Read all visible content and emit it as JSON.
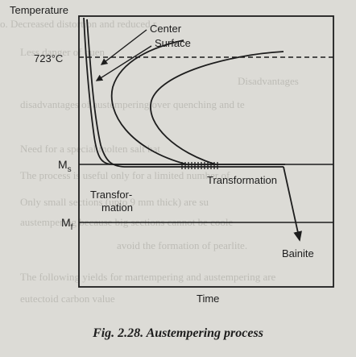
{
  "figure": {
    "y_axis_label": "Temperature",
    "x_axis_label": "Time",
    "temp_label": "723°C",
    "ms_label": "M",
    "ms_sub": "s",
    "mf_label": "M",
    "mf_sub": "f",
    "center_label": "Center",
    "surface_label": "Surface",
    "transformation_label": "Transformation",
    "transfor_label_1": "Transfor-",
    "transfor_label_2": "mation",
    "bainite_label": "Bainite"
  },
  "caption": "Fig. 2.28. Austempering process",
  "background_text": [
    "o. Decreased distortion and reduced r",
    "Less danger of quen",
    "Disadvantages",
    "disadvantages of austempering over quenching and te",
    "Need for a special molten salt bat",
    "The process is useful only for a limited number of",
    "Only small sections (upto 9 mm thick) are su",
    "austempering because big sections cannot be coole",
    "avoid the formation of pearlite.",
    "The following yields for martempering and austempering are",
    "eutectoid carbon value"
  ]
}
